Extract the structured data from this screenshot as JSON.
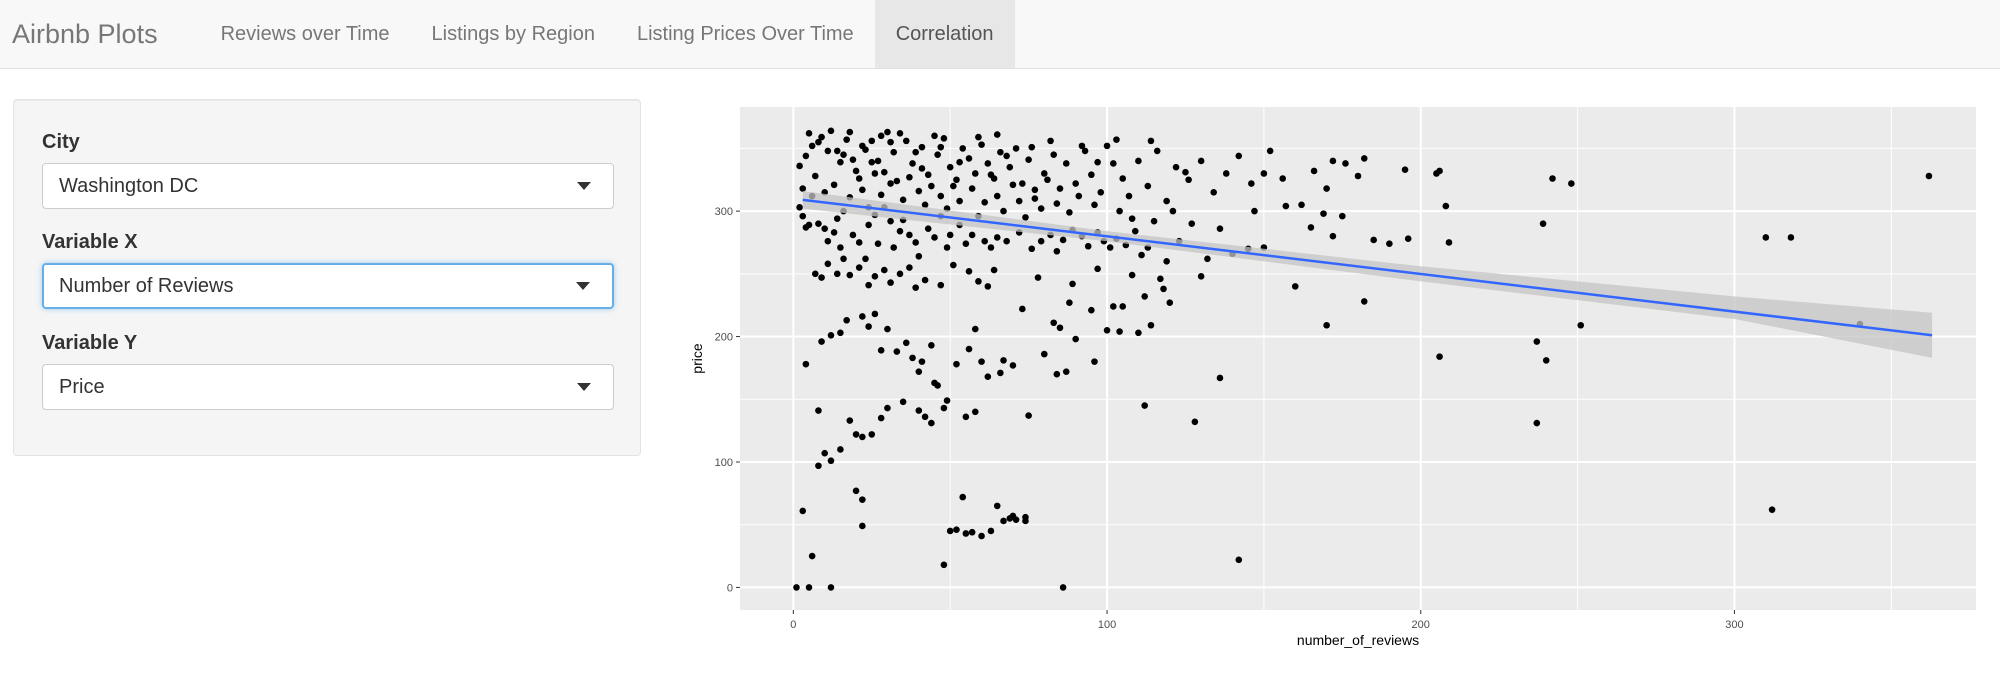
{
  "navbar": {
    "brand": "Airbnb Plots",
    "tabs": [
      {
        "label": "Reviews over Time",
        "active": false
      },
      {
        "label": "Listings by Region",
        "active": false
      },
      {
        "label": "Listing Prices Over Time",
        "active": false
      },
      {
        "label": "Correlation",
        "active": true
      }
    ]
  },
  "sidebar": {
    "city": {
      "label": "City",
      "value": "Washington DC"
    },
    "var_x": {
      "label": "Variable X",
      "value": "Number of Reviews"
    },
    "var_y": {
      "label": "Variable Y",
      "value": "Price"
    }
  },
  "colors": {
    "panel": "#ebebeb",
    "grid": "#ffffff",
    "point": "#000000",
    "fit_line": "#3366ff",
    "confidence_band": "#c4c4c4"
  },
  "chart_data": {
    "type": "scatter",
    "xlabel": "number_of_reviews",
    "ylabel": "price",
    "xlim": [
      -17,
      377
    ],
    "ylim": [
      -18,
      383
    ],
    "xticks": [
      0,
      100,
      200,
      300
    ],
    "yticks": [
      0,
      100,
      200,
      300
    ],
    "grid": true,
    "points": [
      [
        1,
        0
      ],
      [
        5,
        0
      ],
      [
        12,
        0
      ],
      [
        86,
        0
      ],
      [
        48,
        18
      ],
      [
        6,
        25
      ],
      [
        142,
        22
      ],
      [
        22,
        49
      ],
      [
        3,
        61
      ],
      [
        312,
        62
      ],
      [
        50,
        45
      ],
      [
        52,
        46
      ],
      [
        55,
        43
      ],
      [
        57,
        44
      ],
      [
        60,
        41
      ],
      [
        63,
        45
      ],
      [
        67,
        53
      ],
      [
        69,
        55
      ],
      [
        71,
        54
      ],
      [
        70,
        57
      ],
      [
        54,
        72
      ],
      [
        65,
        65
      ],
      [
        74,
        53
      ],
      [
        74,
        56
      ],
      [
        20,
        77
      ],
      [
        22,
        70
      ],
      [
        8,
        97
      ],
      [
        10,
        107
      ],
      [
        12,
        101
      ],
      [
        15,
        110
      ],
      [
        18,
        133
      ],
      [
        20,
        122
      ],
      [
        22,
        120
      ],
      [
        25,
        122
      ],
      [
        28,
        135
      ],
      [
        30,
        143
      ],
      [
        35,
        148
      ],
      [
        40,
        141
      ],
      [
        42,
        136
      ],
      [
        44,
        131
      ],
      [
        48,
        143
      ],
      [
        49,
        149
      ],
      [
        55,
        136
      ],
      [
        58,
        140
      ],
      [
        75,
        137
      ],
      [
        84,
        170
      ],
      [
        87,
        172
      ],
      [
        96,
        180
      ],
      [
        112,
        145
      ],
      [
        128,
        132
      ],
      [
        136,
        167
      ],
      [
        237,
        131
      ],
      [
        206,
        184
      ],
      [
        240,
        181
      ],
      [
        237,
        196
      ],
      [
        8,
        141
      ],
      [
        4,
        178
      ],
      [
        9,
        196
      ],
      [
        12,
        201
      ],
      [
        15,
        203
      ],
      [
        17,
        213
      ],
      [
        22,
        216
      ],
      [
        24,
        208
      ],
      [
        26,
        218
      ],
      [
        28,
        189
      ],
      [
        30,
        206
      ],
      [
        33,
        188
      ],
      [
        36,
        195
      ],
      [
        38,
        183
      ],
      [
        40,
        172
      ],
      [
        41,
        180
      ],
      [
        44,
        193
      ],
      [
        45,
        163
      ],
      [
        46,
        161
      ],
      [
        52,
        178
      ],
      [
        56,
        190
      ],
      [
        58,
        206
      ],
      [
        60,
        180
      ],
      [
        62,
        168
      ],
      [
        66,
        171
      ],
      [
        67,
        181
      ],
      [
        70,
        177
      ],
      [
        73,
        222
      ],
      [
        80,
        186
      ],
      [
        83,
        211
      ],
      [
        85,
        207
      ],
      [
        88,
        227
      ],
      [
        90,
        198
      ],
      [
        95,
        221
      ],
      [
        100,
        205
      ],
      [
        102,
        224
      ],
      [
        104,
        204
      ],
      [
        105,
        224
      ],
      [
        110,
        203
      ],
      [
        112,
        232
      ],
      [
        114,
        209
      ],
      [
        118,
        238
      ],
      [
        120,
        227
      ],
      [
        160,
        240
      ],
      [
        170,
        209
      ],
      [
        182,
        228
      ],
      [
        251,
        209
      ],
      [
        340,
        210
      ],
      [
        3,
        296
      ],
      [
        2,
        303
      ],
      [
        4,
        287
      ],
      [
        6,
        312
      ],
      [
        3,
        318
      ],
      [
        5,
        289
      ],
      [
        8,
        290
      ],
      [
        10,
        286
      ],
      [
        11,
        276
      ],
      [
        13,
        283
      ],
      [
        14,
        294
      ],
      [
        15,
        271
      ],
      [
        16,
        300
      ],
      [
        19,
        281
      ],
      [
        21,
        275
      ],
      [
        23,
        262
      ],
      [
        24,
        289
      ],
      [
        26,
        297
      ],
      [
        27,
        274
      ],
      [
        29,
        303
      ],
      [
        31,
        292
      ],
      [
        32,
        271
      ],
      [
        34,
        284
      ],
      [
        35,
        293
      ],
      [
        37,
        281
      ],
      [
        39,
        275
      ],
      [
        40,
        264
      ],
      [
        43,
        286
      ],
      [
        45,
        279
      ],
      [
        47,
        296
      ],
      [
        49,
        271
      ],
      [
        50,
        281
      ],
      [
        53,
        289
      ],
      [
        55,
        274
      ],
      [
        57,
        281
      ],
      [
        59,
        296
      ],
      [
        61,
        276
      ],
      [
        63,
        271
      ],
      [
        65,
        279
      ],
      [
        68,
        276
      ],
      [
        72,
        283
      ],
      [
        76,
        270
      ],
      [
        79,
        276
      ],
      [
        82,
        281
      ],
      [
        84,
        268
      ],
      [
        86,
        277
      ],
      [
        89,
        285
      ],
      [
        92,
        280
      ],
      [
        94,
        272
      ],
      [
        97,
        283
      ],
      [
        99,
        276
      ],
      [
        101,
        271
      ],
      [
        103,
        278
      ],
      [
        106,
        273
      ],
      [
        109,
        284
      ],
      [
        111,
        265
      ],
      [
        113,
        271
      ],
      [
        117,
        246
      ],
      [
        119,
        260
      ],
      [
        123,
        276
      ],
      [
        132,
        262
      ],
      [
        140,
        266
      ],
      [
        145,
        270
      ],
      [
        150,
        271
      ],
      [
        157,
        304
      ],
      [
        169,
        298
      ],
      [
        172,
        280
      ],
      [
        175,
        296
      ],
      [
        185,
        277
      ],
      [
        190,
        274
      ],
      [
        196,
        278
      ],
      [
        206,
        332
      ],
      [
        209,
        275
      ],
      [
        239,
        290
      ],
      [
        7,
        250
      ],
      [
        9,
        247
      ],
      [
        11,
        258
      ],
      [
        14,
        250
      ],
      [
        16,
        262
      ],
      [
        18,
        249
      ],
      [
        21,
        255
      ],
      [
        24,
        241
      ],
      [
        26,
        248
      ],
      [
        29,
        253
      ],
      [
        31,
        243
      ],
      [
        34,
        250
      ],
      [
        37,
        255
      ],
      [
        39,
        239
      ],
      [
        42,
        245
      ],
      [
        47,
        241
      ],
      [
        51,
        257
      ],
      [
        56,
        252
      ],
      [
        59,
        244
      ],
      [
        62,
        240
      ],
      [
        64,
        253
      ],
      [
        78,
        247
      ],
      [
        89,
        242
      ],
      [
        97,
        254
      ],
      [
        108,
        249
      ],
      [
        130,
        248
      ],
      [
        2,
        336
      ],
      [
        4,
        344
      ],
      [
        6,
        352
      ],
      [
        9,
        359
      ],
      [
        12,
        364
      ],
      [
        14,
        348
      ],
      [
        17,
        357
      ],
      [
        19,
        341
      ],
      [
        20,
        332
      ],
      [
        23,
        349
      ],
      [
        25,
        356
      ],
      [
        27,
        340
      ],
      [
        29,
        331
      ],
      [
        30,
        363
      ],
      [
        32,
        347
      ],
      [
        33,
        324
      ],
      [
        36,
        356
      ],
      [
        38,
        338
      ],
      [
        41,
        351
      ],
      [
        43,
        329
      ],
      [
        46,
        345
      ],
      [
        48,
        358
      ],
      [
        50,
        335
      ],
      [
        51,
        320
      ],
      [
        54,
        350
      ],
      [
        56,
        342
      ],
      [
        58,
        330
      ],
      [
        60,
        353
      ],
      [
        62,
        338
      ],
      [
        64,
        326
      ],
      [
        66,
        347
      ],
      [
        69,
        335
      ],
      [
        71,
        350
      ],
      [
        73,
        322
      ],
      [
        75,
        341
      ],
      [
        77,
        310
      ],
      [
        80,
        330
      ],
      [
        83,
        345
      ],
      [
        85,
        318
      ],
      [
        87,
        338
      ],
      [
        90,
        322
      ],
      [
        93,
        348
      ],
      [
        95,
        329
      ],
      [
        98,
        315
      ],
      [
        100,
        352
      ],
      [
        102,
        338
      ],
      [
        105,
        326
      ],
      [
        107,
        312
      ],
      [
        110,
        340
      ],
      [
        113,
        320
      ],
      [
        116,
        348
      ],
      [
        119,
        308
      ],
      [
        122,
        335
      ],
      [
        126,
        325
      ],
      [
        130,
        340
      ],
      [
        134,
        315
      ],
      [
        138,
        330
      ],
      [
        142,
        344
      ],
      [
        146,
        322
      ],
      [
        150,
        330
      ],
      [
        152,
        348
      ],
      [
        156,
        326
      ],
      [
        162,
        305
      ],
      [
        166,
        332
      ],
      [
        170,
        318
      ],
      [
        172,
        340
      ],
      [
        176,
        338
      ],
      [
        180,
        328
      ],
      [
        182,
        342
      ],
      [
        195,
        333
      ],
      [
        205,
        330
      ],
      [
        208,
        304
      ],
      [
        242,
        326
      ],
      [
        248,
        322
      ],
      [
        310,
        279
      ],
      [
        318,
        279
      ],
      [
        362,
        328
      ],
      [
        7,
        328
      ],
      [
        10,
        315
      ],
      [
        13,
        321
      ],
      [
        15,
        339
      ],
      [
        18,
        311
      ],
      [
        21,
        326
      ],
      [
        22,
        317
      ],
      [
        24,
        303
      ],
      [
        26,
        330
      ],
      [
        28,
        313
      ],
      [
        31,
        322
      ],
      [
        35,
        309
      ],
      [
        37,
        327
      ],
      [
        40,
        316
      ],
      [
        42,
        305
      ],
      [
        44,
        320
      ],
      [
        47,
        312
      ],
      [
        49,
        302
      ],
      [
        52,
        325
      ],
      [
        53,
        308
      ],
      [
        57,
        318
      ],
      [
        61,
        307
      ],
      [
        63,
        329
      ],
      [
        65,
        312
      ],
      [
        67,
        300
      ],
      [
        70,
        321
      ],
      [
        72,
        308
      ],
      [
        74,
        295
      ],
      [
        77,
        317
      ],
      [
        79,
        302
      ],
      [
        81,
        325
      ],
      [
        84,
        306
      ],
      [
        88,
        299
      ],
      [
        91,
        312
      ],
      [
        96,
        305
      ],
      [
        104,
        300
      ],
      [
        108,
        294
      ],
      [
        115,
        292
      ],
      [
        121,
        300
      ],
      [
        127,
        290
      ],
      [
        136,
        286
      ],
      [
        147,
        300
      ],
      [
        165,
        287
      ],
      [
        5,
        362
      ],
      [
        8,
        355
      ],
      [
        11,
        348
      ],
      [
        16,
        345
      ],
      [
        18,
        363
      ],
      [
        22,
        352
      ],
      [
        25,
        339
      ],
      [
        28,
        360
      ],
      [
        31,
        355
      ],
      [
        34,
        362
      ],
      [
        39,
        347
      ],
      [
        41,
        334
      ],
      [
        45,
        360
      ],
      [
        47,
        351
      ],
      [
        53,
        339
      ],
      [
        59,
        359
      ],
      [
        65,
        361
      ],
      [
        68,
        344
      ],
      [
        76,
        351
      ],
      [
        82,
        356
      ],
      [
        92,
        352
      ],
      [
        97,
        339
      ],
      [
        103,
        357
      ],
      [
        114,
        356
      ],
      [
        125,
        331
      ]
    ],
    "fit_line": {
      "x": [
        3,
        363
      ],
      "y": [
        309,
        201
      ]
    },
    "confidence_band": {
      "x": [
        3,
        100,
        200,
        300,
        363
      ],
      "upper": [
        316,
        284,
        256,
        232,
        219
      ],
      "lower": [
        302,
        276,
        244,
        214,
        183
      ]
    }
  }
}
